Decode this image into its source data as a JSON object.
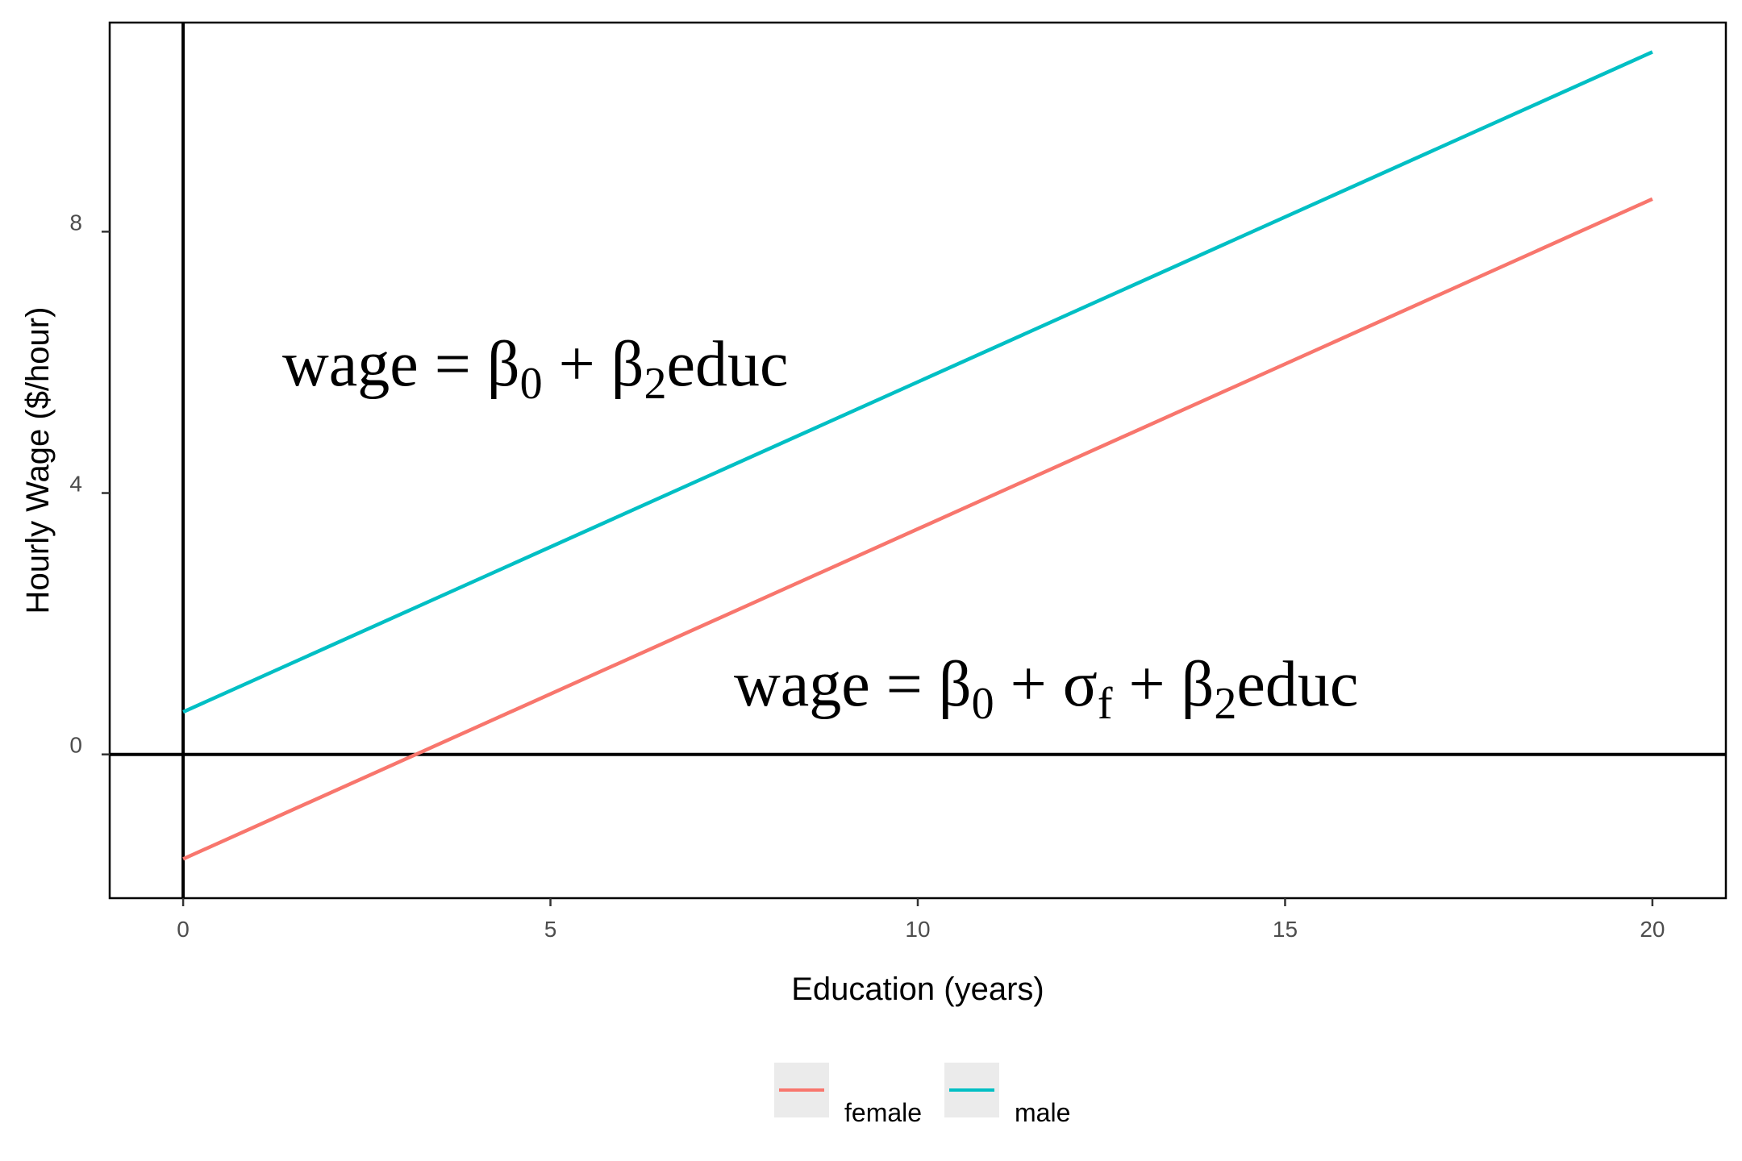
{
  "chart_data": {
    "type": "line",
    "xlabel": "Education (years)",
    "ylabel": "Hourly Wage ($/hour)",
    "xlim": [
      -1,
      21
    ],
    "ylim": [
      -2.2,
      11.2
    ],
    "x_ticks": [
      "0",
      "5",
      "10",
      "15",
      "20"
    ],
    "y_ticks": [
      "0",
      "4",
      "8"
    ],
    "grid": false,
    "reference_lines": {
      "x": 0,
      "y": 0
    },
    "series": [
      {
        "name": "female",
        "color": "#F8766D",
        "x": [
          0,
          20
        ],
        "y": [
          -1.6,
          8.5
        ]
      },
      {
        "name": "male",
        "color": "#00BFC4",
        "x": [
          0,
          20
        ],
        "y": [
          0.65,
          10.75
        ]
      }
    ],
    "legend": {
      "position": "bottom"
    },
    "annotations": [
      {
        "parts": [
          {
            "text": "wage = β"
          },
          {
            "sub": "0"
          },
          {
            "text": " + β"
          },
          {
            "sub": "2"
          },
          {
            "text": "educ"
          }
        ]
      },
      {
        "parts": [
          {
            "text": "wage = β"
          },
          {
            "sub": "0"
          },
          {
            "text": " + σ"
          },
          {
            "sub": "f"
          },
          {
            "text": " + β"
          },
          {
            "sub": "2"
          },
          {
            "text": "educ"
          }
        ]
      }
    ]
  }
}
